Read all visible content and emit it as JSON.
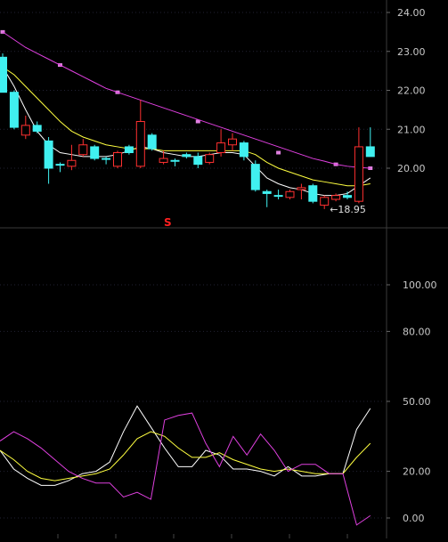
{
  "chart_data": [
    {
      "type": "candlestick",
      "title": "",
      "y_ticks": [
        "24.00",
        "23.00",
        "22.00",
        "21.00",
        "20.00"
      ],
      "ylim": [
        18.5,
        24.4
      ],
      "min_annotation": "←18.95",
      "marker_label": "S",
      "candles": [
        {
          "o": 22.85,
          "h": 22.95,
          "l": 21.95,
          "c": 21.95,
          "up": false
        },
        {
          "o": 21.95,
          "h": 22.0,
          "l": 21.0,
          "c": 21.05,
          "up": false
        },
        {
          "o": 20.85,
          "h": 21.35,
          "l": 20.75,
          "c": 21.1,
          "up": true
        },
        {
          "o": 21.1,
          "h": 21.2,
          "l": 20.9,
          "c": 20.95,
          "up": false
        },
        {
          "o": 20.7,
          "h": 20.8,
          "l": 19.6,
          "c": 20.0,
          "up": false
        },
        {
          "o": 20.1,
          "h": 20.15,
          "l": 19.9,
          "c": 20.1,
          "up": false
        },
        {
          "o": 20.05,
          "h": 20.6,
          "l": 19.95,
          "c": 20.2,
          "up": true
        },
        {
          "o": 20.35,
          "h": 20.75,
          "l": 20.3,
          "c": 20.6,
          "up": true
        },
        {
          "o": 20.55,
          "h": 20.6,
          "l": 20.2,
          "c": 20.25,
          "up": false
        },
        {
          "o": 20.25,
          "h": 20.3,
          "l": 20.1,
          "c": 20.25,
          "up": false
        },
        {
          "o": 20.05,
          "h": 20.45,
          "l": 20.0,
          "c": 20.4,
          "up": true
        },
        {
          "o": 20.55,
          "h": 20.6,
          "l": 20.35,
          "c": 20.4,
          "up": false
        },
        {
          "o": 20.05,
          "h": 21.75,
          "l": 20.0,
          "c": 21.2,
          "up": true
        },
        {
          "o": 20.85,
          "h": 20.9,
          "l": 20.45,
          "c": 20.5,
          "up": false
        },
        {
          "o": 20.15,
          "h": 20.45,
          "l": 20.1,
          "c": 20.25,
          "up": true
        },
        {
          "o": 20.2,
          "h": 20.25,
          "l": 20.05,
          "c": 20.2,
          "up": false
        },
        {
          "o": 20.3,
          "h": 20.4,
          "l": 20.25,
          "c": 20.35,
          "up": false
        },
        {
          "o": 20.1,
          "h": 20.4,
          "l": 20.0,
          "c": 20.3,
          "up": false
        },
        {
          "o": 20.15,
          "h": 20.4,
          "l": 20.1,
          "c": 20.35,
          "up": true
        },
        {
          "o": 20.4,
          "h": 21.0,
          "l": 20.3,
          "c": 20.65,
          "up": true
        },
        {
          "o": 20.6,
          "h": 20.9,
          "l": 20.45,
          "c": 20.75,
          "up": true
        },
        {
          "o": 20.65,
          "h": 20.7,
          "l": 20.2,
          "c": 20.3,
          "up": false
        },
        {
          "o": 20.1,
          "h": 20.2,
          "l": 19.4,
          "c": 19.45,
          "up": false
        },
        {
          "o": 19.4,
          "h": 19.45,
          "l": 19.0,
          "c": 19.35,
          "up": false
        },
        {
          "o": 19.3,
          "h": 19.45,
          "l": 19.2,
          "c": 19.3,
          "up": false
        },
        {
          "o": 19.25,
          "h": 19.45,
          "l": 19.2,
          "c": 19.4,
          "up": true
        },
        {
          "o": 19.5,
          "h": 19.6,
          "l": 19.2,
          "c": 19.45,
          "up": true
        },
        {
          "o": 19.55,
          "h": 19.6,
          "l": 19.1,
          "c": 19.15,
          "up": false
        },
        {
          "o": 19.05,
          "h": 19.3,
          "l": 18.95,
          "c": 19.25,
          "up": true
        },
        {
          "o": 19.2,
          "h": 19.35,
          "l": 19.15,
          "c": 19.3,
          "up": true
        },
        {
          "o": 19.3,
          "h": 19.4,
          "l": 19.2,
          "c": 19.25,
          "up": false
        },
        {
          "o": 19.15,
          "h": 21.05,
          "l": 19.1,
          "c": 20.55,
          "up": true
        },
        {
          "o": 20.55,
          "h": 21.05,
          "l": 20.3,
          "c": 20.3,
          "up": false
        }
      ],
      "series": [
        {
          "color": "#e040e0",
          "style": "dotted-markers",
          "values": [
            23.5,
            null,
            null,
            null,
            null,
            22.65,
            null,
            null,
            null,
            null,
            21.95,
            null,
            null,
            null,
            null,
            null,
            null,
            21.2,
            null,
            null,
            null,
            null,
            null,
            null,
            20.4,
            null,
            null,
            null,
            null,
            20.1,
            null,
            null,
            20.0
          ]
        },
        {
          "color": "#e040e0",
          "style": "line",
          "values": [
            23.5,
            23.3,
            23.1,
            22.95,
            22.8,
            22.65,
            22.5,
            22.35,
            22.2,
            22.05,
            21.95,
            21.85,
            21.75,
            21.65,
            21.55,
            21.45,
            21.35,
            21.25,
            21.15,
            21.05,
            20.95,
            20.85,
            20.75,
            20.65,
            20.55,
            20.45,
            20.35,
            20.25,
            20.18,
            20.1,
            20.05,
            20.02,
            20.0
          ]
        },
        {
          "color": "#ffffff",
          "style": "line",
          "values": [
            22.6,
            22.1,
            21.5,
            20.95,
            20.6,
            20.4,
            20.35,
            20.3,
            20.3,
            20.3,
            20.35,
            20.45,
            20.55,
            20.5,
            20.4,
            20.35,
            20.3,
            20.3,
            20.35,
            20.4,
            20.4,
            20.35,
            20.05,
            19.75,
            19.6,
            19.5,
            19.45,
            19.35,
            19.3,
            19.3,
            19.35,
            19.55,
            19.75
          ]
        },
        {
          "color": "#ffff40",
          "style": "line",
          "values": [
            22.6,
            22.4,
            22.1,
            21.8,
            21.5,
            21.2,
            20.95,
            20.8,
            20.7,
            20.6,
            20.55,
            20.5,
            20.5,
            20.5,
            20.45,
            20.45,
            20.45,
            20.45,
            20.45,
            20.45,
            20.45,
            20.45,
            20.35,
            20.15,
            20.0,
            19.9,
            19.8,
            19.7,
            19.65,
            19.6,
            19.55,
            19.55,
            19.6
          ]
        }
      ]
    },
    {
      "type": "line",
      "title": "",
      "y_ticks": [
        "100.00",
        "80.00",
        "50.00",
        "20.00",
        "0.00"
      ],
      "ylim": [
        -4,
        120
      ],
      "series": [
        {
          "color": "#ffffff",
          "values": [
            29,
            21,
            17,
            14,
            14,
            16,
            19,
            20,
            24,
            37,
            48,
            39,
            30,
            22,
            22,
            29,
            27,
            21,
            21,
            20,
            18,
            22,
            18,
            18,
            19,
            19,
            38,
            47
          ]
        },
        {
          "color": "#ffff40",
          "values": [
            29,
            25,
            20,
            17,
            16,
            17,
            18,
            19,
            21,
            27,
            34,
            37,
            35,
            30,
            26,
            26,
            28,
            25,
            23,
            21,
            20,
            21,
            20,
            19,
            19,
            19,
            26,
            32
          ]
        },
        {
          "color": "#e040e0",
          "values": [
            33,
            37,
            34,
            30,
            25,
            20,
            17,
            15,
            15,
            9,
            11,
            8,
            42,
            44,
            45,
            32,
            22,
            35,
            27,
            36,
            29,
            20,
            23,
            23,
            19,
            19,
            -3,
            1
          ]
        }
      ]
    }
  ]
}
